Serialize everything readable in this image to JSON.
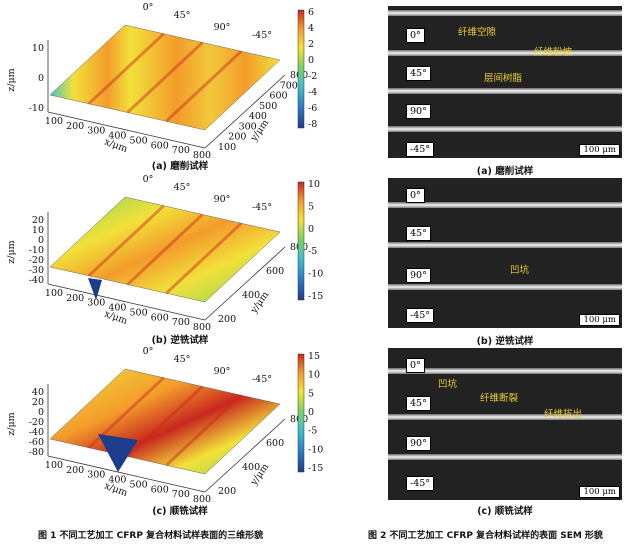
{
  "figure1": {
    "caption": "图 1 不同工艺加工 CFRP 复合材料试样表面的三维形貌",
    "panels": [
      {
        "label": "(a) 磨削试样",
        "z_ticks": [
          "10",
          "0",
          "-10"
        ],
        "x_ticks": [
          "100",
          "200",
          "300",
          "400",
          "500",
          "600",
          "700",
          "800"
        ],
        "y_ticks": [
          "100",
          "200",
          "300",
          "400",
          "500",
          "600",
          "700",
          "800"
        ],
        "cbar": [
          "6",
          "4",
          "2",
          "0",
          "-2",
          "-4",
          "-6",
          "-8"
        ],
        "angles": [
          "0°",
          "45°",
          "90°",
          "-45°"
        ],
        "xlabel": "x/μm",
        "ylabel": "y/μm",
        "zlabel": "z/μm"
      },
      {
        "label": "(b) 逆铣试样",
        "z_ticks": [
          "20",
          "10",
          "0",
          "-10",
          "-20",
          "-30",
          "-40"
        ],
        "x_ticks": [
          "100",
          "200",
          "300",
          "400",
          "500",
          "600",
          "700",
          "800"
        ],
        "y_ticks": [
          "200",
          "400",
          "600",
          "800"
        ],
        "cbar": [
          "10",
          "5",
          "0",
          "-5",
          "-10",
          "-15"
        ],
        "angles": [
          "0°",
          "45°",
          "90°",
          "-45°"
        ],
        "xlabel": "x/μm",
        "ylabel": "y/μm",
        "zlabel": "z/μm"
      },
      {
        "label": "(c) 顺铣试样",
        "z_ticks": [
          "40",
          "20",
          "0",
          "-20",
          "-40",
          "-60",
          "-80"
        ],
        "x_ticks": [
          "100",
          "200",
          "300",
          "400",
          "500",
          "600",
          "700",
          "800"
        ],
        "y_ticks": [
          "200",
          "400",
          "600",
          "800"
        ],
        "cbar": [
          "15",
          "10",
          "5",
          "0",
          "-5",
          "-10",
          "-15"
        ],
        "angles": [
          "0°",
          "45°",
          "90°",
          "-45°"
        ],
        "xlabel": "x/μm",
        "ylabel": "y/μm",
        "zlabel": "z/μm"
      }
    ]
  },
  "figure2": {
    "caption": "图 2 不同工艺加工 CFRP 复合材料试样的表面 SEM 形貌",
    "panels": [
      {
        "label": "(a) 磨削试样",
        "layers": [
          "0°",
          "45°",
          "90°",
          "-45°"
        ],
        "scale": "100 μm",
        "annotations": [
          "纤维空隙",
          "纤维粉坡",
          "层间树脂"
        ]
      },
      {
        "label": "(b) 逆铣试样",
        "layers": [
          "0°",
          "45°",
          "90°",
          "-45°"
        ],
        "scale": "100 μm",
        "annotations": [
          "凹坑"
        ]
      },
      {
        "label": "(c) 顺铣试样",
        "layers": [
          "0°",
          "45°",
          "90°",
          "-45°"
        ],
        "scale": "100 μm",
        "annotations": [
          "凹坑",
          "纤维断裂",
          "纤维拔出"
        ]
      }
    ]
  },
  "colormap": [
    "#1e3c8c",
    "#2a7ecc",
    "#3fc1c9",
    "#7fd35a",
    "#f2e13a",
    "#f39c2b",
    "#c8281e"
  ]
}
